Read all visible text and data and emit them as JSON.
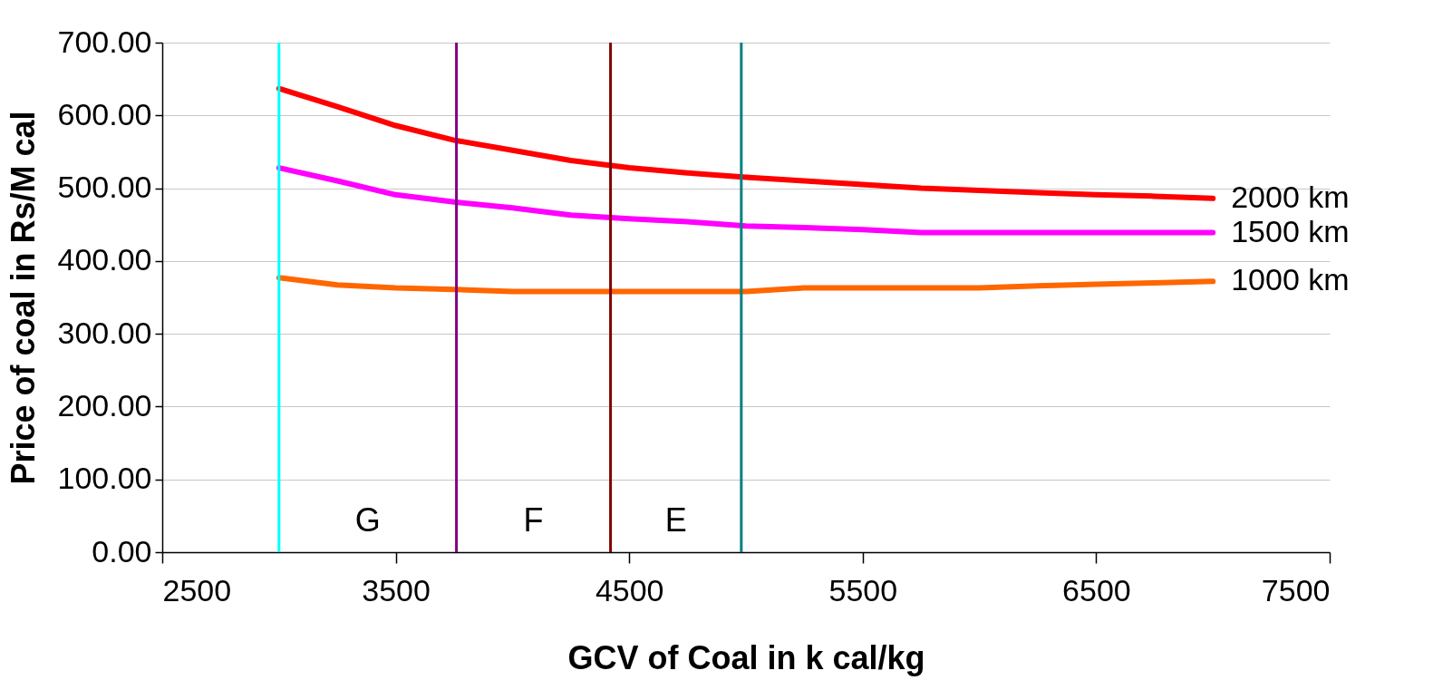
{
  "chart_data": {
    "type": "line",
    "xlabel": "GCV of Coal in k cal/kg",
    "ylabel": "Price of coal in Rs/M cal",
    "x": [
      3000,
      3250,
      3500,
      3750,
      4000,
      4250,
      4500,
      4750,
      5000,
      5250,
      5500,
      5750,
      6000,
      6250,
      6500,
      6750,
      7000
    ],
    "series": [
      {
        "name": "2000 km",
        "color": "#ff0000",
        "values": [
          637,
          612,
          586,
          566,
          552,
          538,
          528,
          521,
          515,
          510,
          505,
          500,
          497,
          494,
          491,
          489,
          486
        ]
      },
      {
        "name": "1500 km",
        "color": "#ff00ff",
        "values": [
          528,
          510,
          491,
          481,
          473,
          463,
          458,
          454,
          448,
          446,
          443,
          439,
          439,
          439,
          439,
          439,
          439
        ]
      },
      {
        "name": "1000 km",
        "color": "#ff6600",
        "values": [
          377,
          367,
          363,
          361,
          358,
          358,
          358,
          358,
          358,
          363,
          363,
          363,
          363,
          366,
          368,
          370,
          372
        ]
      }
    ],
    "xlim": [
      2500,
      7500
    ],
    "xticks": [
      2500,
      3500,
      4500,
      5500,
      6500,
      7500
    ],
    "ylim": [
      0,
      700
    ],
    "yticks": [
      {
        "value": 0,
        "label": "0.00"
      },
      {
        "value": 100,
        "label": "100.00"
      },
      {
        "value": 200,
        "label": "200.00"
      },
      {
        "value": 300,
        "label": "300.00"
      },
      {
        "value": 400,
        "label": "400.00"
      },
      {
        "value": 500,
        "label": "500.00"
      },
      {
        "value": 600,
        "label": "600.00"
      },
      {
        "value": 700,
        "label": "700.00"
      }
    ],
    "grid": "y",
    "legend": false,
    "marker": "none",
    "line_style": "solid",
    "ref_lines": [
      {
        "axis": "x",
        "value": 3000,
        "color": "#00ffff"
      },
      {
        "axis": "x",
        "value": 3760,
        "color": "#800080"
      },
      {
        "axis": "x",
        "value": 4420,
        "color": "#800000"
      },
      {
        "axis": "x",
        "value": 4980,
        "color": "#008080"
      }
    ],
    "annotations": [
      "G",
      "F",
      "E"
    ]
  }
}
